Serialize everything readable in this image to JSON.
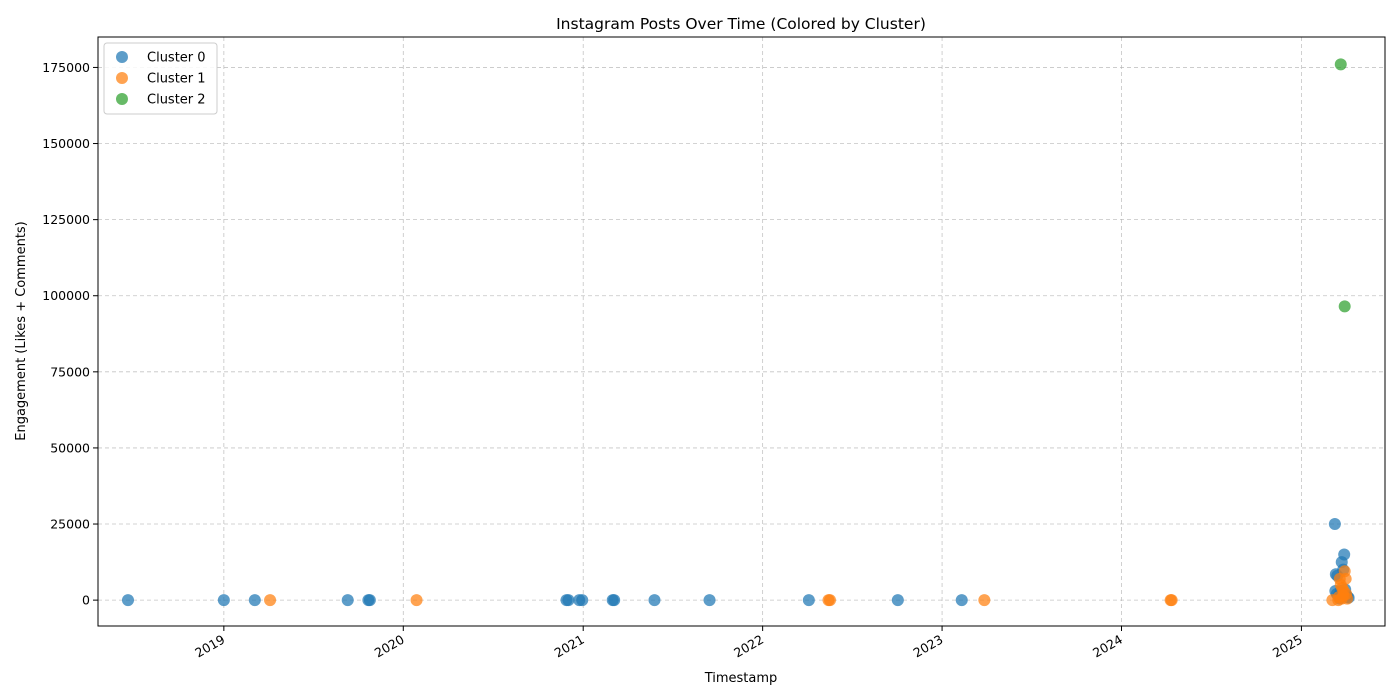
{
  "chart_data": {
    "type": "scatter",
    "title": "Instagram Posts Over Time (Colored by Cluster)",
    "xlabel": "Timestamp",
    "ylabel": "Engagement (Likes + Comments)",
    "x_type": "date",
    "xlim": [
      "2018-04-20",
      "2025-06-20"
    ],
    "ylim": [
      -8500,
      185000
    ],
    "x_ticks": [
      "2019-01-01",
      "2020-01-01",
      "2021-01-01",
      "2022-01-01",
      "2023-01-01",
      "2024-01-01",
      "2025-01-01"
    ],
    "x_tick_labels": [
      "2019",
      "2020",
      "2021",
      "2022",
      "2023",
      "2024",
      "2025"
    ],
    "y_ticks": [
      0,
      25000,
      50000,
      75000,
      100000,
      125000,
      150000,
      175000
    ],
    "grid": true,
    "legend_position": "top-left",
    "series": [
      {
        "name": "Cluster 0",
        "color": "#1f77b4",
        "points": [
          {
            "x": "2018-06-20",
            "y": 0
          },
          {
            "x": "2019-01-01",
            "y": 0
          },
          {
            "x": "2019-03-05",
            "y": 0
          },
          {
            "x": "2019-09-10",
            "y": 0
          },
          {
            "x": "2019-10-22",
            "y": 0
          },
          {
            "x": "2019-10-25",
            "y": 0
          },
          {
            "x": "2020-11-28",
            "y": 0
          },
          {
            "x": "2020-12-02",
            "y": 0
          },
          {
            "x": "2020-12-24",
            "y": 0
          },
          {
            "x": "2020-12-30",
            "y": 0
          },
          {
            "x": "2021-03-02",
            "y": 0
          },
          {
            "x": "2021-03-05",
            "y": 0
          },
          {
            "x": "2021-05-26",
            "y": 0
          },
          {
            "x": "2021-09-15",
            "y": 0
          },
          {
            "x": "2022-04-05",
            "y": 0
          },
          {
            "x": "2022-10-03",
            "y": 0
          },
          {
            "x": "2023-02-10",
            "y": 0
          },
          {
            "x": "2025-03-10",
            "y": 25000
          },
          {
            "x": "2025-03-12",
            "y": 8500
          },
          {
            "x": "2025-03-15",
            "y": 8000
          },
          {
            "x": "2025-03-24",
            "y": 12500
          },
          {
            "x": "2025-03-29",
            "y": 15000
          },
          {
            "x": "2025-03-27",
            "y": 10000
          },
          {
            "x": "2025-03-11",
            "y": 3000
          },
          {
            "x": "2025-03-14",
            "y": 2000
          },
          {
            "x": "2025-03-18",
            "y": 1500
          },
          {
            "x": "2025-03-22",
            "y": 3000
          },
          {
            "x": "2025-03-26",
            "y": 2500
          },
          {
            "x": "2025-03-31",
            "y": 3500
          },
          {
            "x": "2025-04-03",
            "y": 1500
          },
          {
            "x": "2025-04-05",
            "y": 1000
          },
          {
            "x": "2025-03-20",
            "y": 500
          },
          {
            "x": "2025-04-07",
            "y": 800
          }
        ]
      },
      {
        "name": "Cluster 1",
        "color": "#ff7f0e",
        "points": [
          {
            "x": "2019-04-05",
            "y": 0
          },
          {
            "x": "2020-01-28",
            "y": 0
          },
          {
            "x": "2022-05-15",
            "y": 0
          },
          {
            "x": "2022-05-18",
            "y": 0
          },
          {
            "x": "2023-03-28",
            "y": 0
          },
          {
            "x": "2024-04-10",
            "y": 0
          },
          {
            "x": "2024-04-12",
            "y": 0
          },
          {
            "x": "2025-03-05",
            "y": 0
          },
          {
            "x": "2025-03-20",
            "y": 7000
          },
          {
            "x": "2025-03-30",
            "y": 9500
          },
          {
            "x": "2025-04-01",
            "y": 7000
          },
          {
            "x": "2025-03-22",
            "y": 5000
          },
          {
            "x": "2025-03-25",
            "y": 4000
          },
          {
            "x": "2025-03-28",
            "y": 3000
          },
          {
            "x": "2025-04-02",
            "y": 2000
          },
          {
            "x": "2025-03-18",
            "y": 1000
          },
          {
            "x": "2025-03-24",
            "y": 500
          },
          {
            "x": "2025-03-17",
            "y": 0
          },
          {
            "x": "2025-04-04",
            "y": 500
          },
          {
            "x": "2025-03-27",
            "y": 1500
          }
        ]
      },
      {
        "name": "Cluster 2",
        "color": "#2ca02c",
        "points": [
          {
            "x": "2025-03-22",
            "y": 176000
          },
          {
            "x": "2025-03-30",
            "y": 96500
          }
        ]
      }
    ]
  }
}
